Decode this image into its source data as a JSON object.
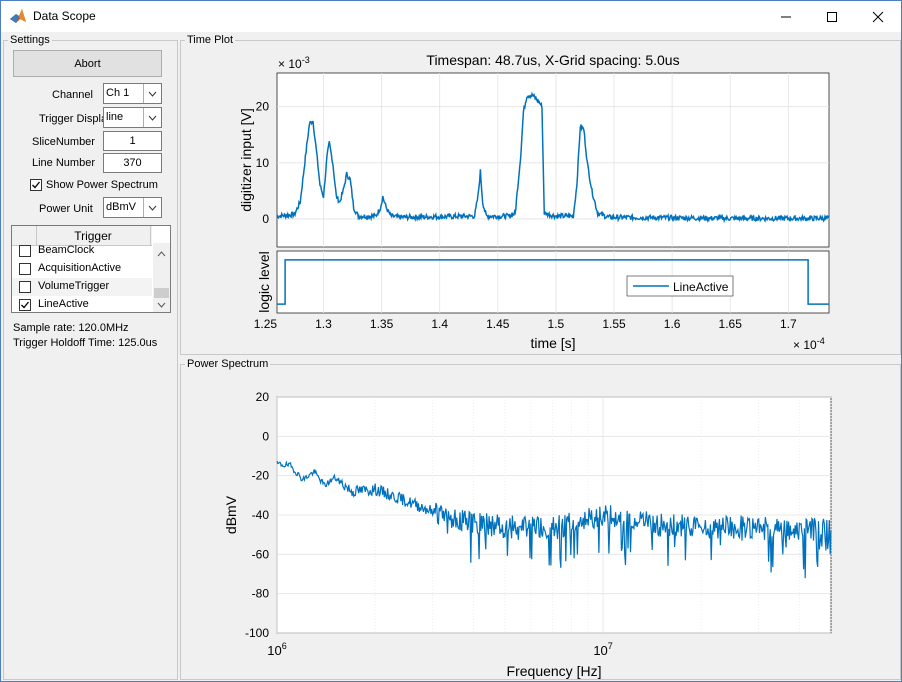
{
  "window": {
    "title": "Data Scope",
    "colors": {
      "accent": "#0072bd",
      "border": "#4a7fc4"
    }
  },
  "window_controls": {
    "minimize": "—",
    "maximize": "☐",
    "close": "✕"
  },
  "settings": {
    "title": "Settings",
    "abort_label": "Abort",
    "channel_label": "Channel",
    "channel_value": "Ch 1",
    "trigger_display_label": "Trigger Displa",
    "trigger_display_value": "line",
    "slice_number_label": "SliceNumber",
    "slice_number_value": "1",
    "line_number_label": "Line Number",
    "line_number_value": "370",
    "show_power_spectrum_label": "Show Power Spectrum",
    "show_power_spectrum_checked": true,
    "power_unit_label": "Power Unit",
    "power_unit_value": "dBmV",
    "trigger_table": {
      "header": "Trigger",
      "rows": [
        {
          "label": "BeamClock",
          "checked": false
        },
        {
          "label": "AcquisitionActive",
          "checked": false
        },
        {
          "label": "VolumeTrigger",
          "checked": false
        },
        {
          "label": "LineActive",
          "checked": true
        }
      ]
    },
    "sample_rate": "Sample rate: 120.0MHz",
    "trigger_holdoff": "Trigger Holdoff Time: 125.0us"
  },
  "time_plot": {
    "panel_title": "Time Plot",
    "title": "Timespan: 48.7us, X-Grid spacing: 5.0us",
    "y_exponent_base": "× 10",
    "y_exponent_power": "-3",
    "x_exponent_base": "× 10",
    "x_exponent_power": "-4",
    "ylabel_top": "digitizer input [V]",
    "ylabel_bottom": "logic level",
    "xlabel": "time [s]",
    "legend": "LineActive"
  },
  "power_spectrum": {
    "panel_title": "Power Spectrum",
    "xlabel": "Frequency [Hz]",
    "ylabel": "dBmV"
  },
  "chart_data": [
    {
      "type": "line",
      "name": "digitizer",
      "xlim": [
        1.26,
        1.735
      ],
      "ylim": [
        -5,
        26
      ],
      "x_ticks": [
        "1.25",
        "1.3",
        "1.35",
        "1.4",
        "1.45",
        "1.5",
        "1.55",
        "1.6",
        "1.65",
        "1.7"
      ],
      "y_ticks": [
        "0",
        "10",
        "20"
      ],
      "x": [
        1.26,
        1.275,
        1.28,
        1.285,
        1.288,
        1.291,
        1.294,
        1.297,
        1.3,
        1.303,
        1.305,
        1.308,
        1.311,
        1.314,
        1.317,
        1.32,
        1.323,
        1.326,
        1.33,
        1.345,
        1.349,
        1.351,
        1.354,
        1.358,
        1.365,
        1.43,
        1.433,
        1.435,
        1.437,
        1.44,
        1.46,
        1.465,
        1.47,
        1.472,
        1.475,
        1.48,
        1.485,
        1.488,
        1.49,
        1.5,
        1.515,
        1.518,
        1.521,
        1.524,
        1.527,
        1.531,
        1.536,
        1.545,
        1.6,
        1.65,
        1.7,
        1.735
      ],
      "y": [
        0.5,
        0.8,
        3,
        12,
        17,
        17.5,
        12,
        6,
        4,
        11,
        13.5,
        10,
        4,
        3,
        5,
        8,
        7,
        2,
        0.5,
        0.5,
        2,
        4,
        2,
        0.5,
        0.3,
        0.5,
        4,
        8.5,
        3,
        0.5,
        0.5,
        1,
        12,
        19,
        22,
        22,
        21,
        20,
        1,
        0.5,
        0.5,
        6,
        16.5,
        16,
        10,
        5,
        1,
        0.3,
        0.2,
        0.1,
        0.1,
        0.1
      ]
    },
    {
      "type": "line",
      "name": "logic",
      "legend": "LineActive",
      "xlim": [
        1.26,
        1.735
      ],
      "ylim": [
        -0.2,
        1.2
      ],
      "x": [
        1.26,
        1.267,
        1.267,
        1.717,
        1.717,
        1.735
      ],
      "y": [
        0,
        0,
        1,
        1,
        0,
        0
      ]
    },
    {
      "type": "line",
      "name": "spectrum",
      "xscale": "log",
      "xlim": [
        1000000,
        50000000
      ],
      "ylim": [
        -100,
        20
      ],
      "x_ticks": [
        "10^6",
        "10^7"
      ],
      "y_ticks": [
        "20",
        "0",
        "-20",
        "-40",
        "-60",
        "-80",
        "-100"
      ],
      "x": [
        1000000,
        1100000,
        1200000,
        1300000,
        1400000,
        1500000,
        1700000,
        2000000,
        2500000,
        3000000,
        4000000,
        5000000,
        7000000,
        10000000,
        15000000,
        20000000,
        30000000,
        40000000,
        50000000
      ],
      "y": [
        -14,
        -15,
        -22,
        -18,
        -25,
        -21,
        -28,
        -27,
        -33,
        -38,
        -44,
        -46,
        -47,
        -40,
        -45,
        -46,
        -46,
        -47,
        -48
      ]
    }
  ]
}
